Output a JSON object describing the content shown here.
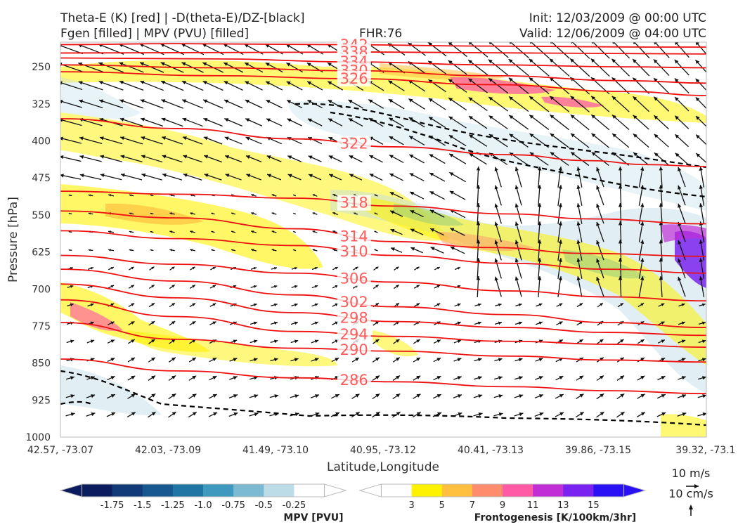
{
  "header": {
    "line1_left": "Theta-E (K) [red] | -D(theta-E)/DZ-[black]",
    "line2_left": "Fgen [filled] | MPV (PVU) [filled]",
    "fhr": "FHR:76",
    "init": "Init: 12/03/2009 @ 00:00 UTC",
    "valid": "Valid: 12/06/2009 @ 04:00 UTC"
  },
  "chart_data": {
    "type": "cross-section",
    "xlabel": "Latitude,Longitude",
    "ylabel": "Pressure [hPa]",
    "x_ticks": [
      "42.57, -73.07",
      "42.03, -73.09",
      "41.49, -73.10",
      "40.95, -73.12",
      "40.41, -73.13",
      "39.86, -73.15",
      "39.32, -73.1"
    ],
    "y_ticks": [
      250,
      325,
      400,
      475,
      550,
      625,
      700,
      775,
      850,
      925,
      1000
    ],
    "ylim": [
      1000,
      200
    ],
    "theta_e_contours": [
      {
        "label": "342",
        "points": [
          [
            0,
            205
          ],
          [
            60,
            203
          ],
          [
            140,
            205
          ],
          [
            220,
            208
          ],
          [
            300,
            210
          ],
          [
            330,
            210
          ]
        ]
      },
      {
        "label": "338",
        "points": [
          [
            0,
            222
          ],
          [
            80,
            221
          ],
          [
            160,
            220
          ],
          [
            240,
            222
          ],
          [
            330,
            224
          ]
        ]
      },
      {
        "label": "334",
        "points": [
          [
            0,
            232
          ],
          [
            80,
            234
          ],
          [
            150,
            240
          ],
          [
            220,
            246
          ],
          [
            290,
            250
          ],
          [
            330,
            252
          ]
        ]
      },
      {
        "label": "330",
        "points": [
          [
            0,
            246
          ],
          [
            80,
            252
          ],
          [
            150,
            258
          ],
          [
            220,
            268
          ],
          [
            290,
            278
          ],
          [
            330,
            283
          ]
        ]
      },
      {
        "label": "326",
        "points": [
          [
            0,
            260
          ],
          [
            80,
            268
          ],
          [
            150,
            274
          ],
          [
            220,
            286
          ],
          [
            290,
            300
          ],
          [
            330,
            308
          ]
        ]
      },
      {
        "label": "322",
        "points": [
          [
            0,
            355
          ],
          [
            60,
            375
          ],
          [
            120,
            396
          ],
          [
            170,
            412
          ],
          [
            230,
            428
          ],
          [
            270,
            440
          ],
          [
            300,
            448
          ],
          [
            330,
            452
          ]
        ]
      },
      {
        "label": "318",
        "points": [
          [
            0,
            502
          ],
          [
            60,
            508
          ],
          [
            120,
            516
          ],
          [
            170,
            532
          ],
          [
            230,
            548
          ],
          [
            270,
            558
          ],
          [
            330,
            568
          ]
        ]
      },
      {
        "label": "314",
        "points": [
          [
            0,
            542
          ],
          [
            60,
            556
          ],
          [
            120,
            578
          ],
          [
            170,
            604
          ],
          [
            220,
            616
          ],
          [
            270,
            628
          ],
          [
            330,
            634
          ]
        ]
      },
      {
        "label": "310",
        "points": [
          [
            0,
            582
          ],
          [
            60,
            598
          ],
          [
            120,
            612
          ],
          [
            170,
            632
          ],
          [
            230,
            648
          ],
          [
            280,
            660
          ],
          [
            330,
            668
          ]
        ]
      },
      {
        "label": "306",
        "points": [
          [
            0,
            632
          ],
          [
            60,
            650
          ],
          [
            120,
            668
          ],
          [
            170,
            686
          ],
          [
            230,
            704
          ],
          [
            280,
            716
          ],
          [
            330,
            724
          ]
        ]
      },
      {
        "label": "302",
        "points": [
          [
            0,
            660
          ],
          [
            60,
            684
          ],
          [
            120,
            712
          ],
          [
            170,
            736
          ],
          [
            230,
            752
          ],
          [
            280,
            768
          ],
          [
            330,
            778
          ]
        ]
      },
      {
        "label": "298",
        "points": [
          [
            0,
            690
          ],
          [
            60,
            718
          ],
          [
            120,
            748
          ],
          [
            170,
            766
          ],
          [
            230,
            778
          ],
          [
            280,
            788
          ],
          [
            330,
            794
          ]
        ]
      },
      {
        "label": "294",
        "points": [
          [
            0,
            722
          ],
          [
            60,
            756
          ],
          [
            120,
            786
          ],
          [
            170,
            796
          ],
          [
            230,
            806
          ],
          [
            280,
            812
          ],
          [
            330,
            818
          ]
        ]
      },
      {
        "label": "290",
        "points": [
          [
            0,
            768
          ],
          [
            60,
            802
          ],
          [
            120,
            820
          ],
          [
            170,
            826
          ],
          [
            230,
            836
          ],
          [
            280,
            844
          ],
          [
            330,
            848
          ]
        ]
      },
      {
        "label": "286",
        "points": [
          [
            0,
            842
          ],
          [
            60,
            866
          ],
          [
            120,
            880
          ],
          [
            170,
            888
          ],
          [
            230,
            898
          ],
          [
            280,
            906
          ],
          [
            330,
            912
          ]
        ]
      }
    ],
    "mpv_colorbar": {
      "title": "MPV [PVU]",
      "ticks": [
        "-1.75",
        "-1.5",
        "-1.25",
        "-1.0",
        "-0.75",
        "-0.5",
        "-0.25"
      ],
      "colors": [
        "#0b1d5e",
        "#103a78",
        "#16588f",
        "#1f76a5",
        "#3f98bd",
        "#7cbad3",
        "#bcdce7",
        "#ffffff"
      ]
    },
    "fgen_colorbar": {
      "title": "Frontogenesis [K/100km/3hr]",
      "ticks": [
        "3",
        "5",
        "7",
        "9",
        "11",
        "13",
        "15"
      ],
      "colors": [
        "#ffffff",
        "#fff200",
        "#ffc040",
        "#ff8c6c",
        "#ff5aa6",
        "#c22ed6",
        "#7a23f0",
        "#2a10f5"
      ]
    },
    "vector_keys": [
      {
        "label": "10 m/s"
      },
      {
        "label": "10 cm/s"
      }
    ]
  }
}
